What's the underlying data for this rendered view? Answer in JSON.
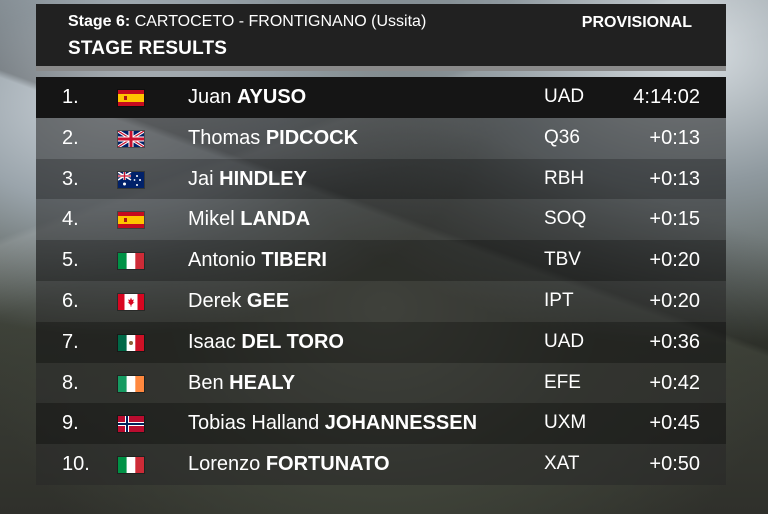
{
  "header": {
    "stage_prefix": "Stage 6:",
    "stage_route": "CARTOCETO - FRONTIGNANO (Ussita)",
    "title": "STAGE RESULTS",
    "status": "PROVISIONAL"
  },
  "colors": {
    "header_bg": "#212121",
    "separator": "#8a8a8a",
    "row_bg": "#1a1a1a",
    "text": "#ffffff"
  },
  "results": [
    {
      "pos": "1.",
      "flag": "spain-flag-icon",
      "first": "Juan",
      "last": "AYUSO",
      "team": "UAD",
      "time": "4:14:02"
    },
    {
      "pos": "2.",
      "flag": "united-kingdom-flag-icon",
      "first": "Thomas",
      "last": "PIDCOCK",
      "team": "Q36",
      "time": "+0:13"
    },
    {
      "pos": "3.",
      "flag": "australia-flag-icon",
      "first": "Jai",
      "last": "HINDLEY",
      "team": "RBH",
      "time": "+0:13"
    },
    {
      "pos": "4.",
      "flag": "spain-flag-icon",
      "first": "Mikel",
      "last": "LANDA",
      "team": "SOQ",
      "time": "+0:15"
    },
    {
      "pos": "5.",
      "flag": "italy-flag-icon",
      "first": "Antonio",
      "last": "TIBERI",
      "team": "TBV",
      "time": "+0:20"
    },
    {
      "pos": "6.",
      "flag": "canada-flag-icon",
      "first": "Derek",
      "last": "GEE",
      "team": "IPT",
      "time": "+0:20"
    },
    {
      "pos": "7.",
      "flag": "mexico-flag-icon",
      "first": "Isaac",
      "last": "DEL TORO",
      "team": "UAD",
      "time": "+0:36"
    },
    {
      "pos": "8.",
      "flag": "ireland-flag-icon",
      "first": "Ben",
      "last": "HEALY",
      "team": "EFE",
      "time": "+0:42"
    },
    {
      "pos": "9.",
      "flag": "norway-flag-icon",
      "first": "Tobias Halland",
      "last": "JOHANNESSEN",
      "team": "UXM",
      "time": "+0:45"
    },
    {
      "pos": "10.",
      "flag": "italy-flag-icon",
      "first": "Lorenzo",
      "last": "FORTUNATO",
      "team": "XAT",
      "time": "+0:50"
    }
  ]
}
